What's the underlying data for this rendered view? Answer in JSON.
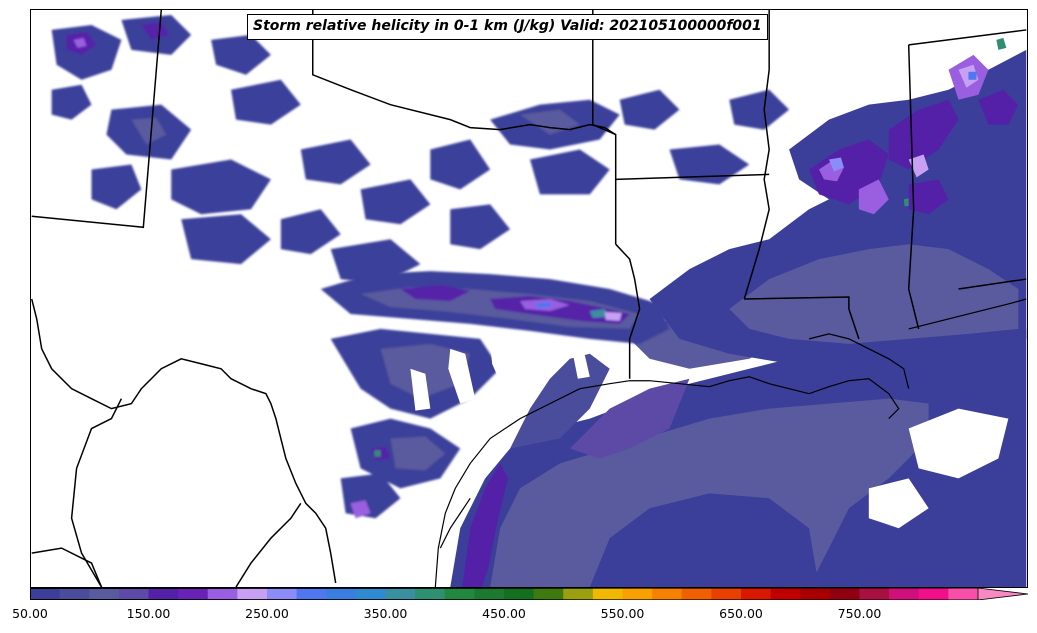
{
  "title": "Storm relative helicity in 0-1 km (J/kg) Valid: 202105100000f001",
  "colorbar": {
    "min": 50,
    "max": 850,
    "step": 25,
    "extend": "max",
    "tick_labels": [
      "50.00",
      "150.00",
      "250.00",
      "350.00",
      "450.00",
      "550.00",
      "650.00",
      "750.00"
    ],
    "tick_values": [
      50,
      150,
      250,
      350,
      450,
      550,
      650,
      750
    ],
    "colors": [
      "#3b3f9a",
      "#4a4c9c",
      "#5a5a9e",
      "#5d4aa6",
      "#5420a8",
      "#6a21b8",
      "#9a5fe0",
      "#c7a0f4",
      "#8b8cf8",
      "#4f77f0",
      "#3a7fe0",
      "#2f8ad0",
      "#3a8fa0",
      "#2e9070",
      "#228840",
      "#1b7a30",
      "#147020",
      "#3e7a10",
      "#9aa010",
      "#f0b800",
      "#f8a000",
      "#f88000",
      "#f06000",
      "#e84000",
      "#d81800",
      "#c00000",
      "#a80000",
      "#900010",
      "#a81040",
      "#d0107a",
      "#f0108a",
      "#f850a8",
      "#f888c0"
    ]
  }
}
